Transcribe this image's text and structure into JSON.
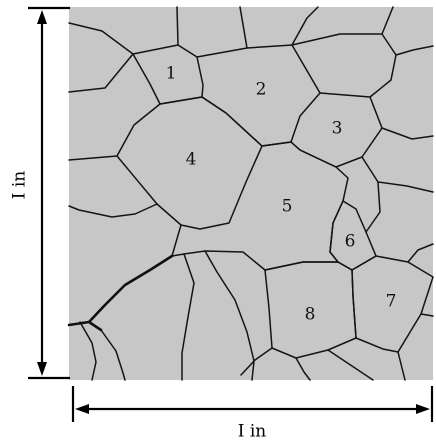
{
  "micrograph": {
    "background_color": "#c7c7c7",
    "boundary_color": "#141414",
    "grains": [
      {
        "label": "1"
      },
      {
        "label": "2"
      },
      {
        "label": "3"
      },
      {
        "label": "4"
      },
      {
        "label": "5"
      },
      {
        "label": "6"
      },
      {
        "label": "7"
      },
      {
        "label": "8"
      }
    ]
  },
  "dimensions": {
    "vertical_label": "I in",
    "horizontal_label": "I in"
  }
}
